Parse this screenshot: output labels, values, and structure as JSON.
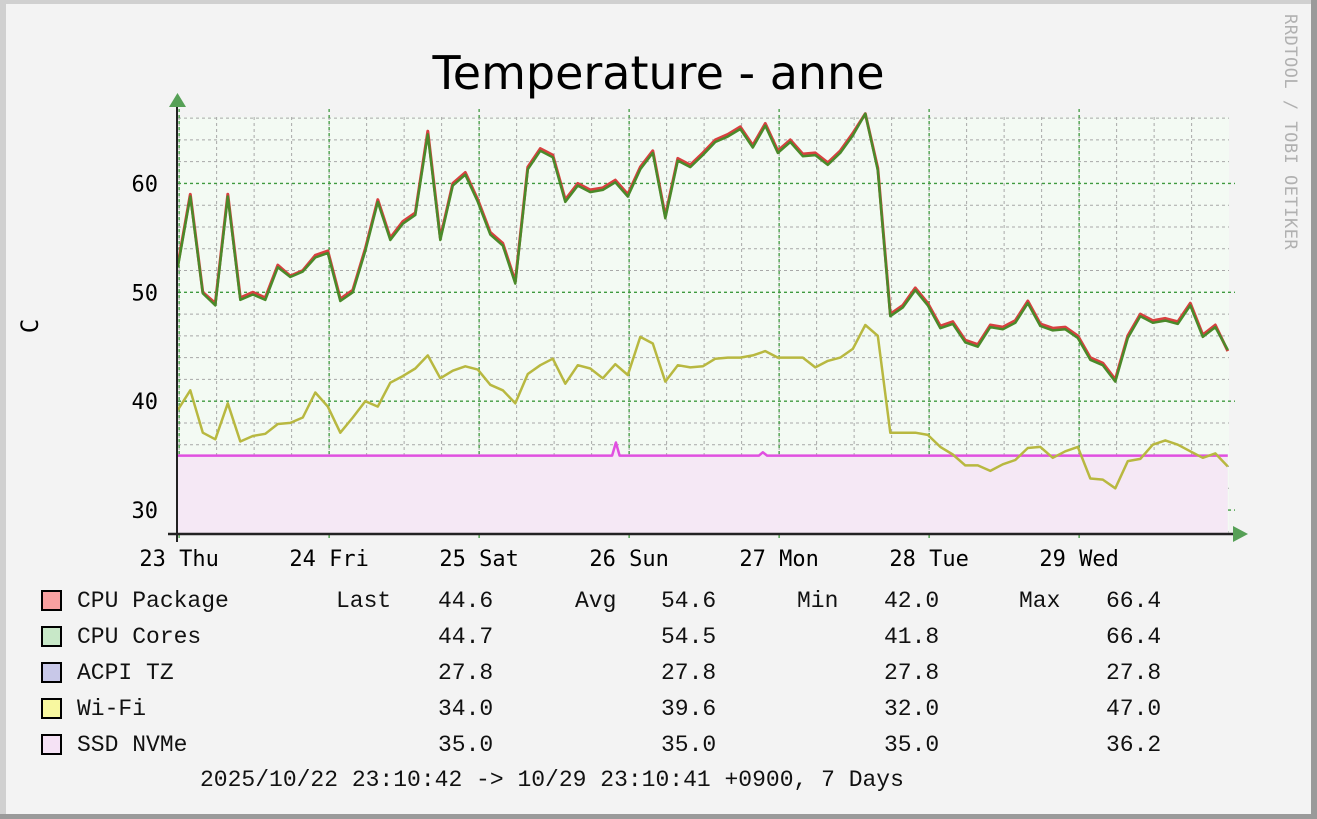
{
  "title": "Temperature - anne",
  "watermark": "RRDTOOL / TOBI OETIKER",
  "footer": "2025/10/22 23:10:42 -> 10/29 23:10:41 +0900, 7 Days",
  "stat_labels": {
    "last": "Last",
    "avg": "Avg",
    "min": "Min",
    "max": "Max"
  },
  "legend": [
    {
      "name": "CPU Package",
      "swatch": "#f8a0a0",
      "last": "44.6",
      "avg": "54.6",
      "min": "42.0",
      "max": "66.4"
    },
    {
      "name": "CPU Cores",
      "swatch": "#c8e8c8",
      "last": "44.7",
      "avg": "54.5",
      "min": "41.8",
      "max": "66.4"
    },
    {
      "name": "ACPI TZ",
      "swatch": "#c8c8e8",
      "last": "27.8",
      "avg": "27.8",
      "min": "27.8",
      "max": "27.8"
    },
    {
      "name": "Wi-Fi",
      "swatch": "#f8f8a0",
      "last": "34.0",
      "avg": "39.6",
      "min": "32.0",
      "max": "47.0"
    },
    {
      "name": "SSD NVMe",
      "swatch": "#f5e2f5",
      "last": "35.0",
      "avg": "35.0",
      "min": "35.0",
      "max": "36.2"
    }
  ],
  "chart_data": {
    "type": "line",
    "title": "Temperature - anne",
    "xlabel": "",
    "ylabel": "C",
    "ylim": [
      27.8,
      66.1
    ],
    "xlim_hours": [
      0,
      168.6
    ],
    "grid": true,
    "y_ticks": [
      30,
      40,
      50,
      60
    ],
    "y_minor_step": 2,
    "x_ticks": [
      {
        "label": "23 Thu",
        "hour": 0.82
      },
      {
        "label": "24 Fri",
        "hour": 24.82
      },
      {
        "label": "25 Sat",
        "hour": 48.82
      },
      {
        "label": "26 Sun",
        "hour": 72.82
      },
      {
        "label": "27 Mon",
        "hour": 96.82
      },
      {
        "label": "28 Tue",
        "hour": 120.82
      },
      {
        "label": "29 Wed",
        "hour": 144.82
      }
    ],
    "x_minor_step_hours": 6,
    "series": [
      {
        "name": "CPU Package",
        "line_color": "#d84040",
        "start_hour": 0.6,
        "step_hours": 2,
        "values": [
          52.5,
          59,
          50,
          49,
          59,
          49.5,
          50,
          49.5,
          52.5,
          51.5,
          52,
          53.4,
          53.8,
          49.4,
          50.2,
          54,
          58.5,
          55,
          56.5,
          57.3,
          64.8,
          55,
          60,
          61,
          58.5,
          55.5,
          54.5,
          51,
          61.5,
          63.2,
          62.6,
          58.5,
          60,
          59.4,
          59.6,
          60.3,
          59,
          61.5,
          63,
          57,
          62.3,
          61.7,
          62.8,
          64,
          64.5,
          65.2,
          63.5,
          65.5,
          63,
          64,
          62.7,
          62.8,
          61.9,
          63,
          64.6,
          66.4,
          61.4,
          48,
          48.8,
          50.4,
          49,
          46.9,
          47.3,
          45.6,
          45.2,
          47,
          46.8,
          47.4,
          49.2,
          47.1,
          46.7,
          46.8,
          46,
          44,
          43.5,
          42.0,
          46,
          48,
          47.4,
          47.6,
          47.3,
          49,
          46.1,
          47,
          44.6
        ]
      },
      {
        "name": "CPU Cores",
        "line_color": "#4a8a2a",
        "start_hour": 0.6,
        "step_hours": 2,
        "values": [
          52.3,
          58.8,
          49.9,
          48.8,
          58.8,
          49.3,
          49.8,
          49.3,
          52.3,
          51.4,
          51.9,
          53.2,
          53.6,
          49.2,
          50.0,
          53.8,
          58.3,
          54.8,
          56.3,
          57.1,
          64.5,
          54.8,
          59.8,
          60.8,
          58.3,
          55.3,
          54.3,
          50.8,
          61.3,
          63.0,
          62.4,
          58.3,
          59.8,
          59.2,
          59.4,
          60.1,
          58.8,
          61.3,
          62.8,
          56.8,
          62.1,
          61.5,
          62.6,
          63.8,
          64.3,
          65.0,
          63.3,
          65.3,
          62.8,
          63.8,
          62.5,
          62.6,
          61.7,
          62.8,
          64.4,
          66.4,
          61.2,
          47.8,
          48.6,
          50.2,
          48.8,
          46.7,
          47.1,
          45.4,
          45.0,
          46.8,
          46.6,
          47.2,
          49.0,
          46.9,
          46.5,
          46.6,
          45.8,
          43.8,
          43.3,
          41.8,
          45.8,
          47.8,
          47.2,
          47.4,
          47.1,
          48.8,
          45.9,
          46.8,
          44.7
        ]
      },
      {
        "name": "ACPI TZ",
        "line_color": "#8080d0",
        "points": [
          [
            0,
            27.8
          ],
          [
            168.6,
            27.8
          ]
        ]
      },
      {
        "name": "Wi-Fi",
        "line_color": "#b8b840",
        "start_hour": 0.6,
        "step_hours": 2,
        "values": [
          39.2,
          41,
          37.1,
          36.5,
          39.8,
          36.3,
          36.8,
          37,
          37.9,
          38,
          38.5,
          40.8,
          39.5,
          37.1,
          38.5,
          40,
          39.5,
          41.7,
          42.3,
          43,
          44.2,
          42.1,
          42.8,
          43.2,
          42.9,
          41.5,
          41,
          39.8,
          42.5,
          43.3,
          43.9,
          41.6,
          43.3,
          43,
          42.1,
          43.4,
          42.4,
          45.9,
          45.3,
          41.8,
          43.3,
          43.1,
          43.2,
          43.9,
          44,
          44,
          44.2,
          44.6,
          44,
          44,
          44,
          43.1,
          43.7,
          44,
          44.8,
          47.0,
          46,
          37.1,
          37.1,
          37.1,
          36.9,
          35.8,
          35.1,
          34.1,
          34.1,
          33.6,
          34.2,
          34.6,
          35.7,
          35.8,
          34.8,
          35.4,
          35.8,
          32.9,
          32.8,
          32.0,
          34.5,
          34.7,
          36,
          36.4,
          36,
          35.4,
          34.8,
          35.2,
          34.0
        ]
      },
      {
        "name": "SSD NVMe",
        "line_color": "#e050e0",
        "fill": "#f5e8f5",
        "points": [
          [
            0.6,
            35
          ],
          [
            70.1,
            35
          ],
          [
            70.7,
            36.2
          ],
          [
            71.3,
            35
          ],
          [
            93.6,
            35
          ],
          [
            94.2,
            35.3
          ],
          [
            94.9,
            35
          ],
          [
            168.6,
            35
          ]
        ]
      }
    ]
  }
}
